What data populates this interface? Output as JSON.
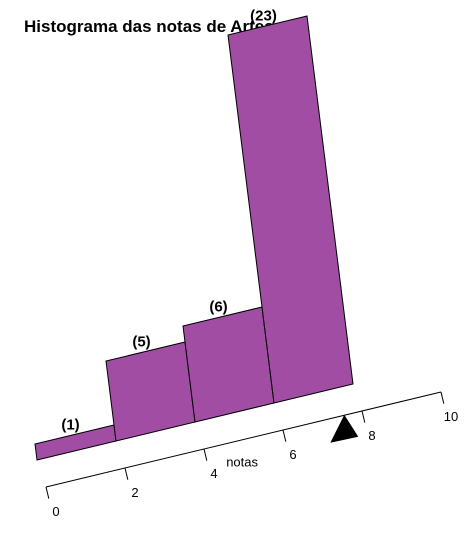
{
  "chart_data": {
    "type": "bar",
    "title": "Histograma das notas de Artes",
    "xlabel": "notas",
    "ylabel": "",
    "bins": [
      {
        "from": 0,
        "to": 2,
        "count": 1,
        "label": "(1)"
      },
      {
        "from": 2,
        "to": 4,
        "count": 5,
        "label": "(5)"
      },
      {
        "from": 4,
        "to": 6,
        "count": 6,
        "label": "(6)"
      },
      {
        "from": 6,
        "to": 8,
        "count": 23,
        "label": "(23)"
      }
    ],
    "x_ticks": [
      "0",
      "2",
      "4",
      "6",
      "8",
      "10"
    ],
    "xlim": [
      0,
      10
    ],
    "ylim": [
      0,
      23
    ],
    "marker_value": 7.4,
    "grid": false,
    "colors": {
      "bar": "#a04da3",
      "marker": "#000000"
    }
  }
}
